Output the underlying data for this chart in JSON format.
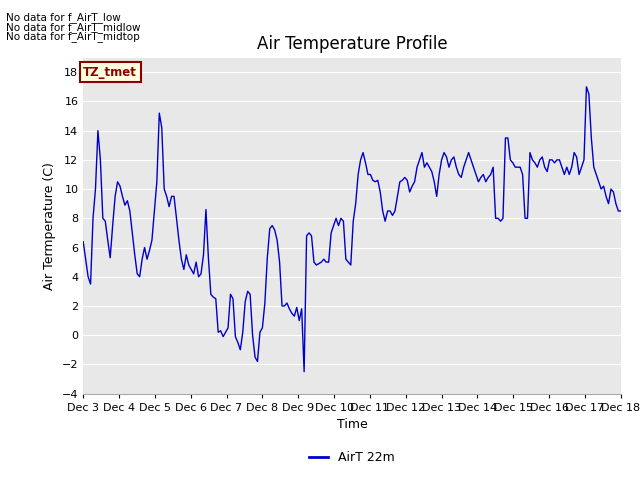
{
  "title": "Air Temperature Profile",
  "xlabel": "Time",
  "ylabel": "Air Termperature (C)",
  "legend_label": "AirT 22m",
  "line_color": "#0000CC",
  "ylim": [
    -4,
    19
  ],
  "yticks": [
    -4,
    -2,
    0,
    2,
    4,
    6,
    8,
    10,
    12,
    14,
    16,
    18
  ],
  "fig_bg": "#ffffff",
  "plot_bg": "#e8e8e8",
  "no_data_texts": [
    "No data for f_AirT_low",
    "No data for f_AirT_midlow",
    "No data for f_AirT_midtop"
  ],
  "tz_label": "TZ_tmet",
  "x_tick_labels": [
    "Dec 3",
    "Dec 4",
    "Dec 5",
    "Dec 6",
    "Dec 7",
    "Dec 8",
    "Dec 9",
    "Dec 10",
    "Dec 11",
    "Dec 12",
    "Dec 13",
    "Dec 14",
    "Dec 15",
    "Dec 16",
    "Dec 17",
    "Dec 18"
  ],
  "time_series": [
    6.4,
    5.2,
    4.0,
    3.5,
    8.0,
    10.0,
    14.0,
    12.0,
    8.0,
    7.8,
    6.5,
    5.3,
    7.5,
    9.5,
    10.5,
    10.2,
    9.5,
    8.9,
    9.2,
    8.5,
    7.0,
    5.5,
    4.2,
    4.0,
    5.2,
    6.0,
    5.2,
    5.8,
    6.5,
    8.5,
    10.5,
    15.2,
    14.2,
    10.0,
    9.5,
    8.8,
    9.5,
    9.5,
    8.0,
    6.5,
    5.2,
    4.5,
    5.5,
    4.8,
    4.5,
    4.2,
    5.0,
    4.0,
    4.2,
    5.5,
    8.6,
    5.3,
    2.8,
    2.6,
    2.5,
    0.2,
    0.3,
    -0.1,
    0.2,
    0.5,
    2.8,
    2.5,
    -0.1,
    -0.5,
    -1.0,
    0.2,
    2.3,
    3.0,
    2.8,
    0.0,
    -1.5,
    -1.8,
    0.2,
    0.5,
    2.2,
    5.3,
    7.3,
    7.5,
    7.2,
    6.5,
    5.0,
    2.0,
    2.0,
    2.2,
    1.8,
    1.5,
    1.3,
    1.9,
    1.0,
    1.8,
    -2.5,
    6.8,
    7.0,
    6.8,
    5.0,
    4.8,
    4.9,
    5.0,
    5.2,
    5.0,
    5.0,
    7.0,
    7.5,
    8.0,
    7.5,
    8.0,
    7.8,
    5.2,
    5.0,
    4.8,
    7.8,
    9.0,
    11.0,
    12.0,
    12.5,
    11.8,
    11.0,
    11.0,
    10.6,
    10.5,
    10.6,
    9.8,
    8.5,
    7.8,
    8.5,
    8.5,
    8.2,
    8.5,
    9.5,
    10.5,
    10.6,
    10.8,
    10.6,
    9.8,
    10.2,
    10.5,
    11.5,
    12.0,
    12.5,
    11.5,
    11.8,
    11.5,
    11.2,
    10.5,
    9.5,
    11.0,
    12.0,
    12.5,
    12.2,
    11.5,
    12.0,
    12.2,
    11.5,
    11.0,
    10.8,
    11.5,
    12.0,
    12.5,
    12.0,
    11.5,
    11.0,
    10.5,
    10.8,
    11.0,
    10.5,
    10.8,
    11.0,
    11.5,
    8.0,
    8.0,
    7.8,
    8.0,
    13.5,
    13.5,
    12.0,
    11.8,
    11.5,
    11.5,
    11.5,
    11.0,
    8.0,
    8.0,
    12.5,
    12.0,
    11.8,
    11.5,
    12.0,
    12.2,
    11.5,
    11.2,
    12.0,
    12.0,
    11.8,
    12.0,
    12.0,
    11.5,
    11.0,
    11.5,
    11.0,
    11.5,
    12.5,
    12.2,
    11.0,
    11.5,
    12.0,
    17.0,
    16.5,
    13.5,
    11.5,
    11.0,
    10.5,
    10.0,
    10.2,
    9.5,
    9.0,
    10.0,
    9.8,
    9.0,
    8.5,
    8.5
  ]
}
